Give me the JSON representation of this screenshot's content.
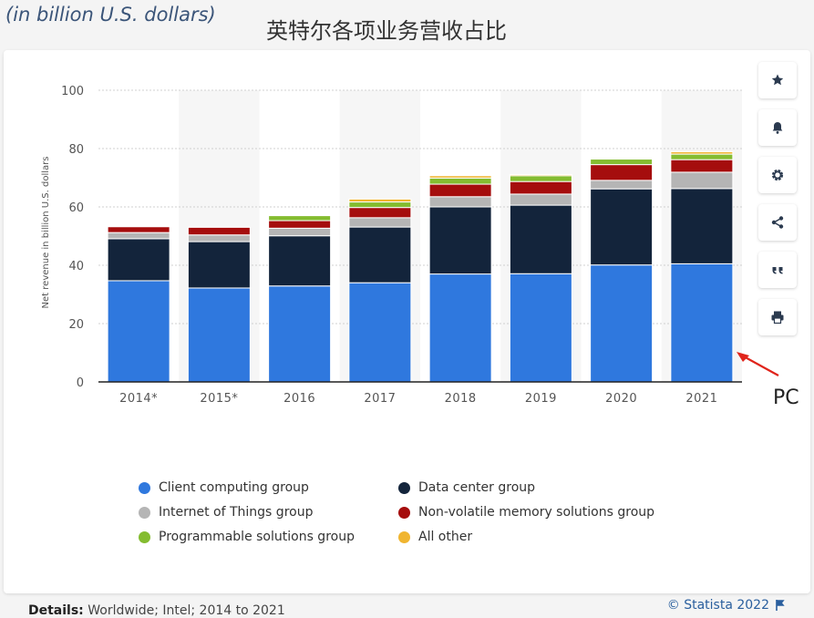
{
  "caption": "(in billion U.S. dollars)",
  "title_cn": "英特尔各项业务营收占比",
  "annotation": "PC",
  "details_label": "Details:",
  "details_text": "Worldwide; Intel; 2014 to 2021",
  "credit": "© Statista 2022",
  "toolbar": [
    {
      "icon": "star-icon",
      "name": "favorite-button"
    },
    {
      "icon": "bell-icon",
      "name": "notification-button"
    },
    {
      "icon": "gear-icon",
      "name": "settings-button"
    },
    {
      "icon": "share-icon",
      "name": "share-button"
    },
    {
      "icon": "quote-icon",
      "name": "cite-button"
    },
    {
      "icon": "print-icon",
      "name": "print-button"
    }
  ],
  "chart_data": {
    "type": "bar",
    "stacked": true,
    "ylabel": "Net revenue in billion U.S. dollars",
    "ylim": [
      0,
      100
    ],
    "yticks": [
      0,
      20,
      40,
      60,
      80,
      100
    ],
    "grid": true,
    "legend_position": "bottom",
    "categories": [
      "2014*",
      "2015*",
      "2016",
      "2017",
      "2018",
      "2019",
      "2020",
      "2021"
    ],
    "series": [
      {
        "name": "Client computing group",
        "color": "#2f78de",
        "values": [
          34.7,
          32.2,
          32.9,
          34.0,
          37.0,
          37.1,
          40.1,
          40.5
        ]
      },
      {
        "name": "Data center group",
        "color": "#13243b",
        "values": [
          14.4,
          15.9,
          17.2,
          19.1,
          23.0,
          23.5,
          26.1,
          25.8
        ]
      },
      {
        "name": "Internet of Things group",
        "color": "#b5b5b5",
        "values": [
          2.1,
          2.3,
          2.6,
          3.2,
          3.5,
          3.8,
          2.9,
          5.6
        ]
      },
      {
        "name": "Non-volatile memory solutions group",
        "color": "#a50d0d",
        "values": [
          2.0,
          2.6,
          2.6,
          3.5,
          4.3,
          4.3,
          5.4,
          4.3
        ]
      },
      {
        "name": "Programmable solutions group",
        "color": "#84bc30",
        "values": [
          0.0,
          0.0,
          1.7,
          1.9,
          2.1,
          2.0,
          1.9,
          1.9
        ]
      },
      {
        "name": "All other",
        "color": "#f0b530",
        "values": [
          0.0,
          0.0,
          0.0,
          1.0,
          0.8,
          0.4,
          0.1,
          0.8
        ]
      }
    ]
  }
}
